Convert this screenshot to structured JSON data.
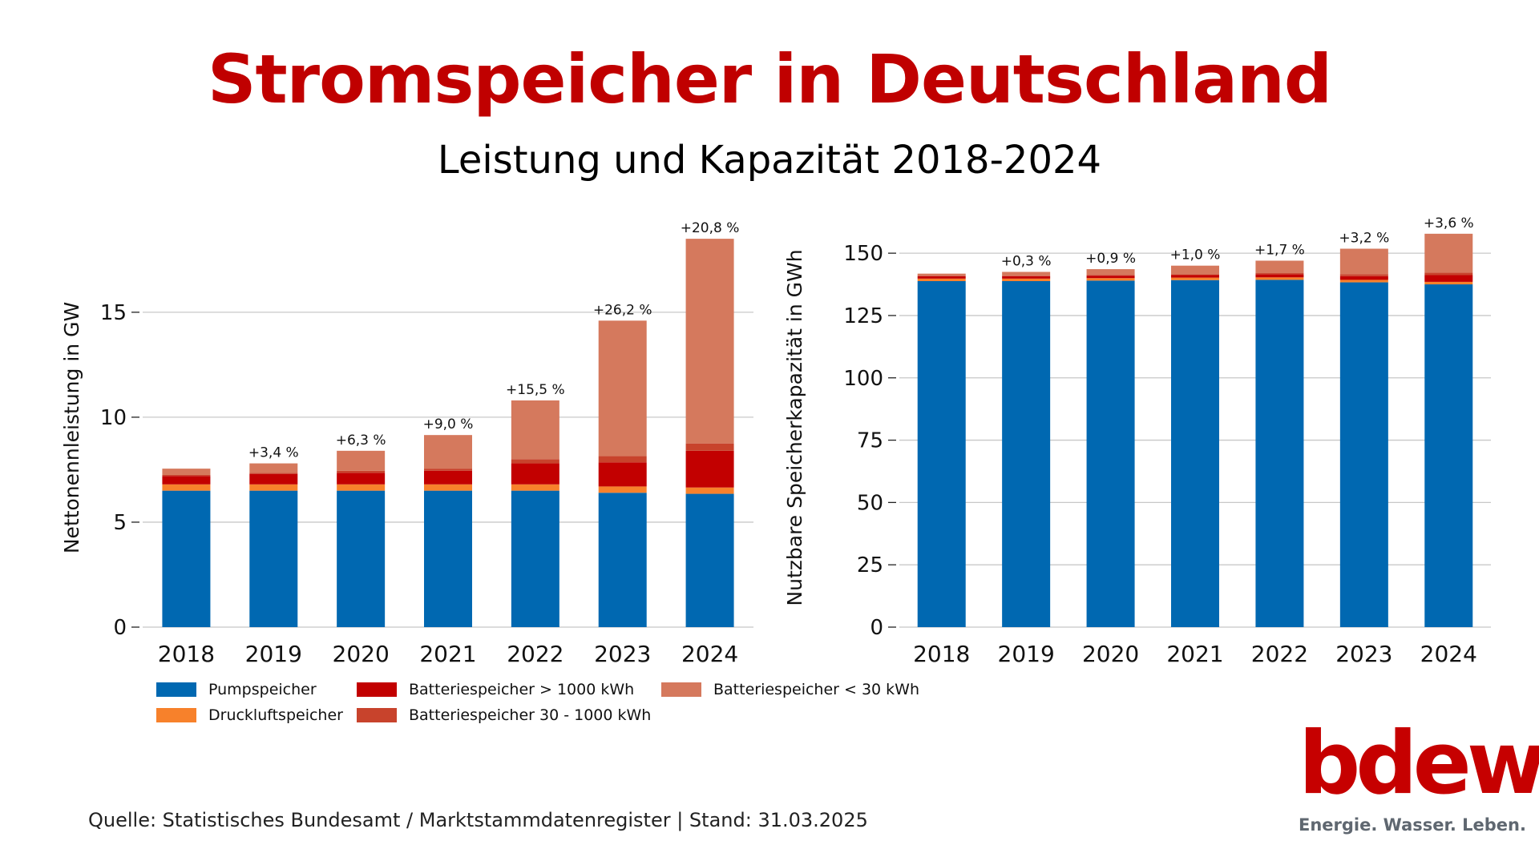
{
  "title": "Stromspeicher in Deutschland",
  "subtitle": "Leistung und Kapazität 2018-2024",
  "colors": {
    "title": "#c00000",
    "pumpspeicher": "#0068b1",
    "druckluft": "#f7812b",
    "batterie_gross": "#c20000",
    "batterie_mittel": "#c8432c",
    "batterie_klein": "#d5795d",
    "grid": "#c8c8c8",
    "logo": "#c60000"
  },
  "legend": [
    {
      "key": "pump",
      "label": "Pumpspeicher",
      "color": "#0068b1"
    },
    {
      "key": "druck",
      "label": "Druckluftspeicher",
      "color": "#f7812b"
    },
    {
      "key": "gross",
      "label": "Batteriespeicher > 1000 kWh",
      "color": "#c20000"
    },
    {
      "key": "mittel",
      "label": "Batteriespeicher 30 - 1000 kWh",
      "color": "#c8432c"
    },
    {
      "key": "klein",
      "label": "Batteriespeicher < 30 kWh",
      "color": "#d5795d"
    }
  ],
  "chart_data": [
    {
      "type": "bar",
      "stacked": true,
      "ylabel": "Nettonennleistung in GW",
      "xlabel": "",
      "ylim": [
        0,
        19
      ],
      "yticks": [
        0,
        5,
        10,
        15
      ],
      "grid": true,
      "categories": [
        "2018",
        "2019",
        "2020",
        "2021",
        "2022",
        "2023",
        "2024"
      ],
      "series": [
        {
          "name": "Pumpspeicher",
          "color": "#0068b1",
          "values": [
            6.5,
            6.5,
            6.5,
            6.5,
            6.5,
            6.4,
            6.35
          ]
        },
        {
          "name": "Druckluftspeicher",
          "color": "#f7812b",
          "values": [
            0.3,
            0.3,
            0.3,
            0.3,
            0.3,
            0.3,
            0.3
          ]
        },
        {
          "name": "Batteriespeicher > 1000 kWh",
          "color": "#c20000",
          "values": [
            0.4,
            0.5,
            0.55,
            0.65,
            1.0,
            1.15,
            1.75
          ]
        },
        {
          "name": "Batteriespeicher 30 - 1000 kWh",
          "color": "#c8432c",
          "values": [
            0.05,
            0.05,
            0.1,
            0.1,
            0.2,
            0.3,
            0.35
          ]
        },
        {
          "name": "Batteriespeicher < 30 kWh",
          "color": "#d5795d",
          "values": [
            0.3,
            0.45,
            0.95,
            1.6,
            2.8,
            6.45,
            9.75
          ]
        }
      ],
      "annotations": [
        "",
        "+3,4 %",
        "+6,3 %",
        "+9,0 %",
        "+15,5 %",
        "+26,2 %",
        "+20,8 %"
      ]
    },
    {
      "type": "bar",
      "stacked": true,
      "ylabel": "Nutzbare Speicherkapazität in GWh",
      "xlabel": "",
      "ylim": [
        0,
        160
      ],
      "yticks": [
        0,
        25,
        50,
        75,
        100,
        125,
        150
      ],
      "grid": true,
      "categories": [
        "2018",
        "2019",
        "2020",
        "2021",
        "2022",
        "2023",
        "2024"
      ],
      "series": [
        {
          "name": "Pumpspeicher",
          "color": "#0068b1",
          "values": [
            138.8,
            138.8,
            139.0,
            139.2,
            139.3,
            138.3,
            137.5
          ]
        },
        {
          "name": "Druckluftspeicher",
          "color": "#f7812b",
          "values": [
            1.0,
            1.0,
            1.0,
            1.0,
            1.0,
            1.0,
            1.0
          ]
        },
        {
          "name": "Batteriespeicher > 1000 kWh",
          "color": "#c20000",
          "values": [
            1.0,
            1.0,
            1.0,
            1.0,
            1.2,
            1.5,
            2.7
          ]
        },
        {
          "name": "Batteriespeicher 30 - 1000 kWh",
          "color": "#c8432c",
          "values": [
            0.2,
            0.2,
            0.3,
            0.3,
            0.5,
            0.8,
            1.0
          ]
        },
        {
          "name": "Batteriespeicher < 30 kWh",
          "color": "#d5795d",
          "values": [
            0.8,
            1.5,
            2.3,
            3.5,
            5.0,
            10.2,
            15.6
          ]
        }
      ],
      "annotations": [
        "",
        "+0,3 %",
        "+0,9 %",
        "+1,0 %",
        "+1,7 %",
        "+3,2 %",
        "+3,6 %"
      ]
    }
  ],
  "source": "Quelle: Statistisches Bundesamt / Marktstammdatenregister  | Stand: 31.03.2025",
  "logo": {
    "word": "bdew",
    "tagline": "Energie. Wasser. Leben."
  }
}
